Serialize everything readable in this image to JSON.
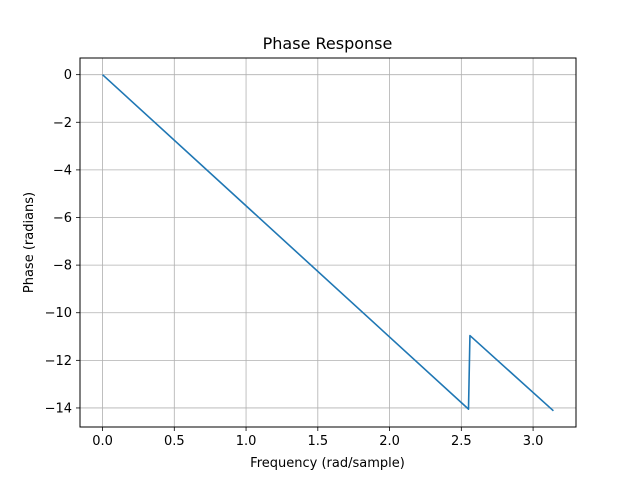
{
  "chart_data": {
    "type": "line",
    "title": "Phase Response",
    "xlabel": "Frequency (rad/sample)",
    "ylabel": "Phase (radians)",
    "xlim": [
      -0.157,
      3.299
    ],
    "ylim": [
      -14.8,
      0.7
    ],
    "xticks": [
      0.0,
      0.5,
      1.0,
      1.5,
      2.0,
      2.5,
      3.0
    ],
    "xtick_labels": [
      "0.0",
      "0.5",
      "1.0",
      "1.5",
      "2.0",
      "2.5",
      "3.0"
    ],
    "yticks": [
      0,
      -2,
      -4,
      -6,
      -8,
      -10,
      -12,
      -14
    ],
    "ytick_labels": [
      "0",
      "−2",
      "−4",
      "−6",
      "−8",
      "−10",
      "−12",
      "−14"
    ],
    "grid": true,
    "series": [
      {
        "color": "#1f77b4",
        "x": [
          0.0,
          2.55,
          2.56,
          3.1416
        ],
        "y": [
          0.0,
          -14.05,
          -10.96,
          -14.12
        ]
      }
    ]
  }
}
